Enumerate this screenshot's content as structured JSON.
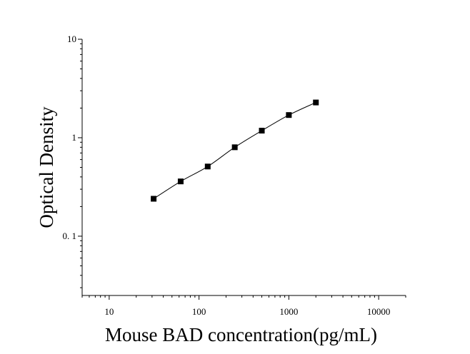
{
  "chart_data": {
    "type": "scatter",
    "title": "",
    "xlabel": "Mouse BAD concentration(pg/mL)",
    "ylabel": "Optical Density",
    "x_scale": "log",
    "y_scale": "log",
    "xlim": [
      5,
      20000
    ],
    "ylim": [
      0.025,
      10
    ],
    "x_ticks": [
      {
        "value": 10,
        "label": "10"
      },
      {
        "value": 100,
        "label": "100"
      },
      {
        "value": 1000,
        "label": "1000"
      },
      {
        "value": 10000,
        "label": "10000"
      }
    ],
    "y_ticks": [
      {
        "value": 0.1,
        "label": "0. 1"
      },
      {
        "value": 1,
        "label": "1"
      },
      {
        "value": 10,
        "label": "10"
      }
    ],
    "grid": false,
    "legend": "none",
    "series": [
      {
        "marker": "square",
        "color": "#000000",
        "fit_curve": true,
        "points": [
          {
            "x": 31.25,
            "y": 0.24
          },
          {
            "x": 62.5,
            "y": 0.36
          },
          {
            "x": 125,
            "y": 0.51
          },
          {
            "x": 250,
            "y": 0.8
          },
          {
            "x": 500,
            "y": 1.18
          },
          {
            "x": 1000,
            "y": 1.7
          },
          {
            "x": 2000,
            "y": 2.28
          }
        ]
      }
    ]
  }
}
